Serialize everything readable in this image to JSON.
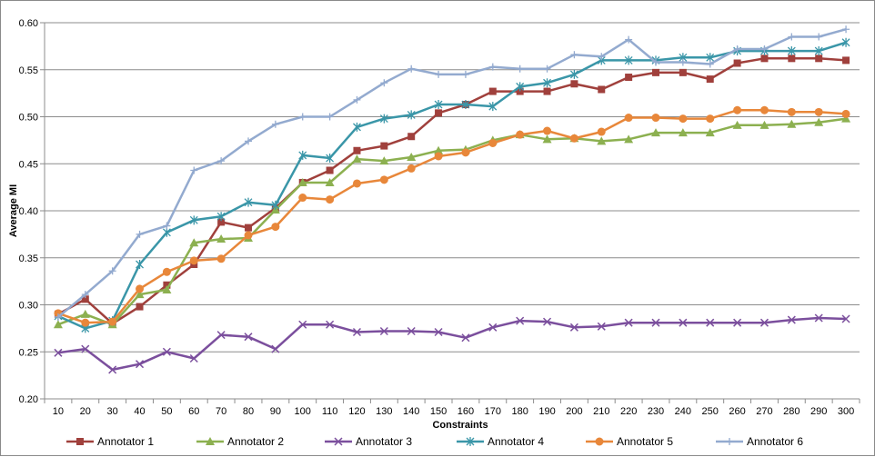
{
  "chart_data": {
    "type": "line",
    "title": "",
    "xlabel": "Constraints",
    "ylabel": "Average MI",
    "x": [
      10,
      20,
      30,
      40,
      50,
      60,
      70,
      80,
      90,
      100,
      110,
      120,
      130,
      140,
      150,
      160,
      170,
      180,
      190,
      200,
      210,
      220,
      230,
      240,
      250,
      260,
      270,
      280,
      290,
      300
    ],
    "ylim": [
      0.2,
      0.6
    ],
    "yticks": [
      "0.20",
      "0.25",
      "0.30",
      "0.35",
      "0.40",
      "0.45",
      "0.50",
      "0.55",
      "0.60"
    ],
    "grid": "horizontal",
    "legend": "bottom",
    "series": [
      {
        "name": "Annotator 1",
        "color": "#A0403C",
        "marker": "square",
        "values": [
          0.29,
          0.306,
          0.28,
          0.298,
          0.321,
          0.343,
          0.388,
          0.382,
          0.403,
          0.43,
          0.443,
          0.464,
          0.469,
          0.479,
          0.504,
          0.513,
          0.527,
          0.527,
          0.527,
          0.535,
          0.529,
          0.542,
          0.547,
          0.547,
          0.54,
          0.557,
          0.562,
          0.562,
          0.562,
          0.56
        ]
      },
      {
        "name": "Annotator 2",
        "color": "#8CB050",
        "marker": "triangle",
        "values": [
          0.279,
          0.29,
          0.279,
          0.311,
          0.316,
          0.366,
          0.37,
          0.371,
          0.401,
          0.43,
          0.43,
          0.455,
          0.453,
          0.457,
          0.464,
          0.465,
          0.475,
          0.481,
          0.476,
          0.477,
          0.474,
          0.476,
          0.483,
          0.483,
          0.483,
          0.491,
          0.491,
          0.492,
          0.494,
          0.498
        ]
      },
      {
        "name": "Annotator 3",
        "color": "#7B4F9D",
        "marker": "x",
        "values": [
          0.249,
          0.253,
          0.231,
          0.237,
          0.25,
          0.243,
          0.268,
          0.266,
          0.253,
          0.279,
          0.279,
          0.271,
          0.272,
          0.272,
          0.271,
          0.265,
          0.276,
          0.283,
          0.282,
          0.276,
          0.277,
          0.281,
          0.281,
          0.281,
          0.281,
          0.281,
          0.281,
          0.284,
          0.286,
          0.285
        ]
      },
      {
        "name": "Annotator 4",
        "color": "#3A96A8",
        "marker": "star",
        "values": [
          0.288,
          0.275,
          0.283,
          0.343,
          0.377,
          0.39,
          0.394,
          0.409,
          0.406,
          0.459,
          0.456,
          0.489,
          0.498,
          0.502,
          0.513,
          0.513,
          0.511,
          0.532,
          0.536,
          0.545,
          0.56,
          0.56,
          0.56,
          0.563,
          0.563,
          0.57,
          0.57,
          0.57,
          0.57,
          0.579
        ]
      },
      {
        "name": "Annotator 5",
        "color": "#E8873A",
        "marker": "circle",
        "values": [
          0.291,
          0.281,
          0.282,
          0.317,
          0.335,
          0.347,
          0.349,
          0.374,
          0.383,
          0.414,
          0.412,
          0.429,
          0.433,
          0.445,
          0.458,
          0.462,
          0.472,
          0.481,
          0.485,
          0.477,
          0.484,
          0.499,
          0.499,
          0.498,
          0.498,
          0.507,
          0.507,
          0.505,
          0.505,
          0.503
        ]
      },
      {
        "name": "Annotator 6",
        "color": "#93AACF",
        "marker": "plus",
        "values": [
          0.287,
          0.311,
          0.336,
          0.375,
          0.384,
          0.443,
          0.453,
          0.474,
          0.492,
          0.5,
          0.5,
          0.518,
          0.536,
          0.551,
          0.545,
          0.545,
          0.553,
          0.551,
          0.551,
          0.566,
          0.564,
          0.582,
          0.558,
          0.558,
          0.556,
          0.572,
          0.572,
          0.585,
          0.585,
          0.593
        ]
      }
    ]
  }
}
